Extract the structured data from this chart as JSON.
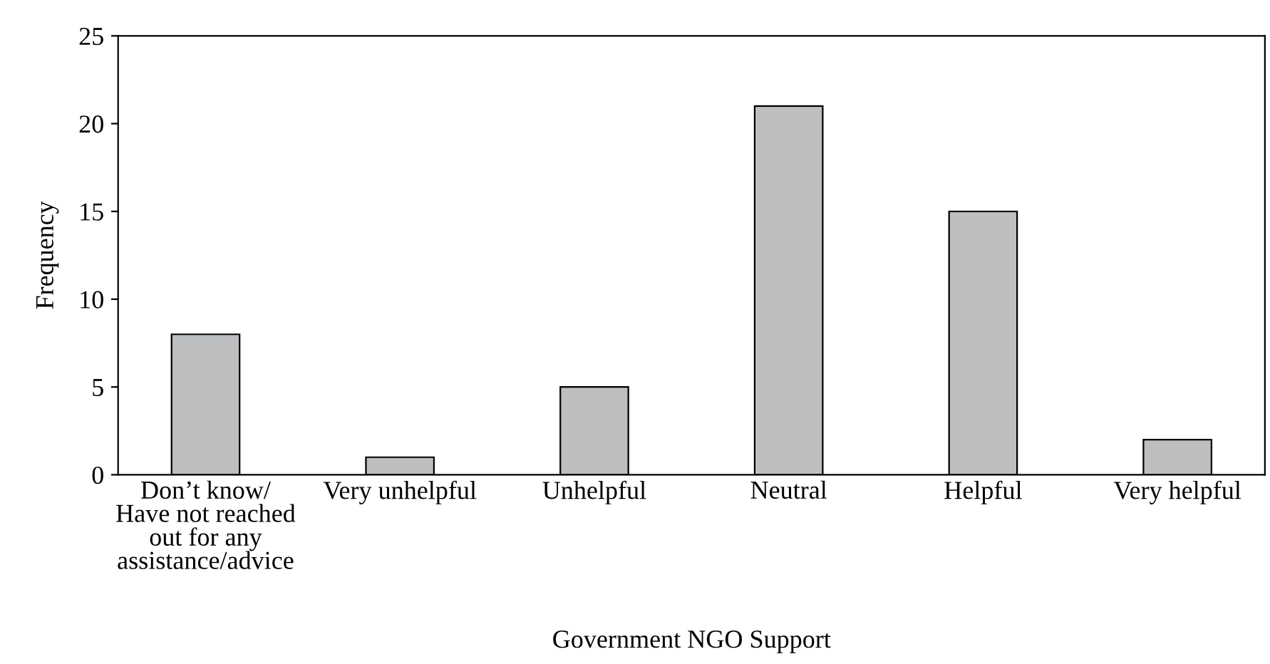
{
  "chart_data": {
    "type": "bar",
    "categories": [
      "Don’t know/\nHave not reached\nout for any\nassistance/advice",
      "Very unhelpful",
      "Unhelpful",
      "Neutral",
      "Helpful",
      "Very helpful"
    ],
    "values": [
      8,
      1,
      5,
      21,
      15,
      2
    ],
    "color": "#bcbec0",
    "xlabel": "Government NGO Support",
    "ylabel": "Frequency",
    "ylim": [
      0,
      25
    ],
    "yticks": [
      0,
      5,
      10,
      15,
      20,
      25
    ],
    "grid": false,
    "legend": false
  }
}
